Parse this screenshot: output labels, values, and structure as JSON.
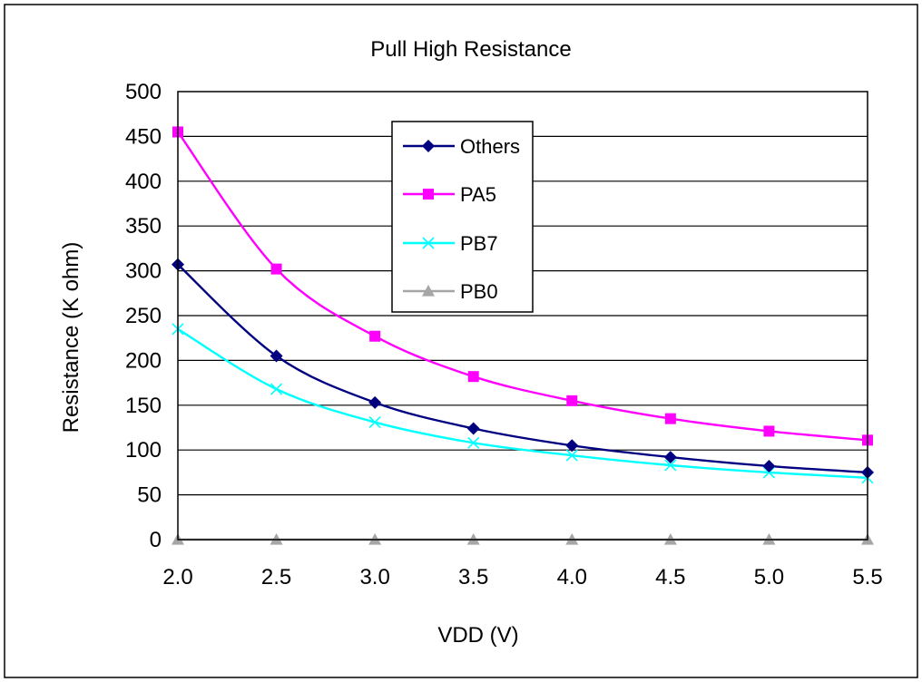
{
  "chart_data": {
    "type": "line",
    "title": "Pull High Resistance",
    "xlabel": "VDD (V)",
    "ylabel": "Resistance (K ohm)",
    "x": [
      2.0,
      2.5,
      3.0,
      3.5,
      4.0,
      4.5,
      5.0,
      5.5
    ],
    "x_tick_labels": [
      "2.0",
      "2.5",
      "3.0",
      "3.5",
      "4.0",
      "4.5",
      "5.0",
      "5.5"
    ],
    "xlim": [
      2.0,
      5.5
    ],
    "ylim": [
      0,
      500
    ],
    "y_ticks": [
      0,
      50,
      100,
      150,
      200,
      250,
      300,
      350,
      400,
      450,
      500
    ],
    "grid": "horizontal",
    "legend_position": "top-center",
    "series": [
      {
        "name": "Others",
        "color": "#000080",
        "marker": "diamond",
        "values": [
          307,
          205,
          153,
          124,
          105,
          92,
          82,
          75
        ]
      },
      {
        "name": "PA5",
        "color": "#ff00ff",
        "marker": "square",
        "values": [
          455,
          302,
          227,
          182,
          155,
          135,
          121,
          111
        ]
      },
      {
        "name": "PB7",
        "color": "#00ffff",
        "marker": "x",
        "values": [
          235,
          168,
          131,
          108,
          94,
          83,
          75,
          69
        ]
      },
      {
        "name": "PB0",
        "color": "#a6a6a6",
        "marker": "triangle",
        "values": [
          0,
          0,
          0,
          0,
          0,
          0,
          0,
          0
        ]
      }
    ]
  }
}
